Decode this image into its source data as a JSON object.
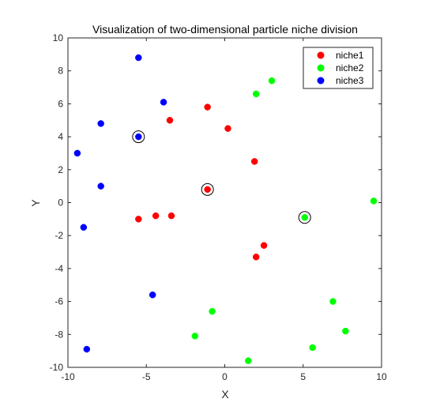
{
  "chart_data": {
    "type": "scatter",
    "title": "Visualization of two-dimensional particle niche division",
    "xlabel": "X",
    "ylabel": "Y",
    "xlim": [
      -10,
      10
    ],
    "ylim": [
      -10,
      10
    ],
    "xticks": [
      -10,
      -5,
      0,
      5,
      10
    ],
    "yticks": [
      -10,
      -8,
      -6,
      -4,
      -2,
      0,
      2,
      4,
      6,
      8,
      10
    ],
    "grid": false,
    "legend_position": "top-right",
    "series": [
      {
        "name": "niche1",
        "color": "#ff0000",
        "points": [
          [
            -1.1,
            5.8
          ],
          [
            -3.5,
            5.0
          ],
          [
            0.2,
            4.5
          ],
          [
            1.9,
            2.5
          ],
          [
            -1.1,
            0.8
          ],
          [
            -5.5,
            -1.0
          ],
          [
            -4.4,
            -0.8
          ],
          [
            -3.4,
            -0.8
          ],
          [
            2.5,
            -2.6
          ],
          [
            2.0,
            -3.3
          ]
        ]
      },
      {
        "name": "niche2",
        "color": "#00ff00",
        "points": [
          [
            3.0,
            7.4
          ],
          [
            2.0,
            6.6
          ],
          [
            9.5,
            0.1
          ],
          [
            5.1,
            -0.9
          ],
          [
            6.9,
            -6.0
          ],
          [
            -0.8,
            -6.6
          ],
          [
            7.7,
            -7.8
          ],
          [
            -1.9,
            -8.1
          ],
          [
            5.6,
            -8.8
          ],
          [
            1.5,
            -9.6
          ]
        ]
      },
      {
        "name": "niche3",
        "color": "#0000ff",
        "points": [
          [
            -5.5,
            8.8
          ],
          [
            -3.9,
            6.1
          ],
          [
            -7.9,
            4.8
          ],
          [
            -5.5,
            4.0
          ],
          [
            -9.4,
            3.0
          ],
          [
            -7.9,
            1.0
          ],
          [
            -9.0,
            -1.5
          ],
          [
            -4.6,
            -5.6
          ],
          [
            -8.8,
            -8.9
          ]
        ]
      }
    ],
    "highlighted_points": [
      [
        -5.5,
        4.0
      ],
      [
        -1.1,
        0.8
      ],
      [
        5.1,
        -0.9
      ]
    ]
  }
}
